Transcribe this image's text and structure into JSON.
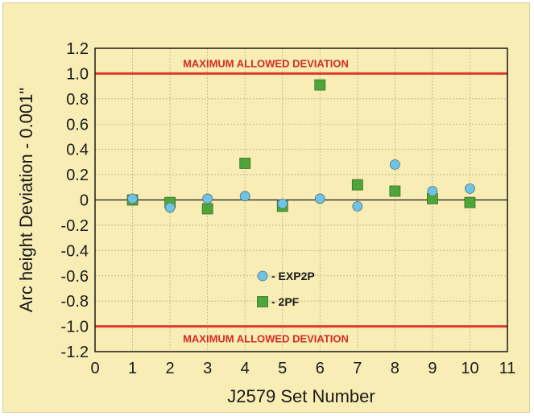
{
  "chart_data": {
    "type": "scatter",
    "xlabel": "J2579 Set Number",
    "ylabel": "Arc height Deviation - 0.001\"",
    "xlim": [
      0,
      11
    ],
    "ylim": [
      -1.2,
      1.2
    ],
    "x_ticks": [
      "0",
      "1",
      "2",
      "3",
      "4",
      "5",
      "6",
      "7",
      "8",
      "9",
      "10",
      "11"
    ],
    "y_ticks": [
      "1.2",
      "1.0",
      "0.8",
      "0.6",
      "0.4",
      "0.2",
      "0",
      "-0.2",
      "-0.4",
      "-0.6",
      "-0.8",
      "-1.0",
      "-1.2"
    ],
    "grid": true,
    "limit_lines": [
      {
        "value": 1.0,
        "label": "MAXIMUM ALLOWED DEVIATION",
        "color": "#e03a2f"
      },
      {
        "value": -1.0,
        "label": "MAXIMUM ALLOWED DEVIATION",
        "color": "#e03a2f"
      }
    ],
    "series": [
      {
        "name": "- EXP2P",
        "marker": "circle",
        "color": "#6ec4e4",
        "x": [
          1,
          2,
          3,
          4,
          5,
          6,
          7,
          8,
          9,
          10
        ],
        "y": [
          0.01,
          -0.06,
          0.01,
          0.03,
          -0.03,
          0.01,
          -0.05,
          0.28,
          0.07,
          0.09
        ]
      },
      {
        "name": "- 2PF",
        "marker": "square",
        "color": "#4ea53a",
        "x": [
          1,
          2,
          3,
          4,
          5,
          6,
          7,
          8,
          9,
          10
        ],
        "y": [
          0.0,
          -0.02,
          -0.07,
          0.29,
          -0.05,
          0.91,
          0.12,
          0.07,
          0.01,
          -0.02
        ]
      }
    ],
    "legend_placement": "lower-center"
  }
}
